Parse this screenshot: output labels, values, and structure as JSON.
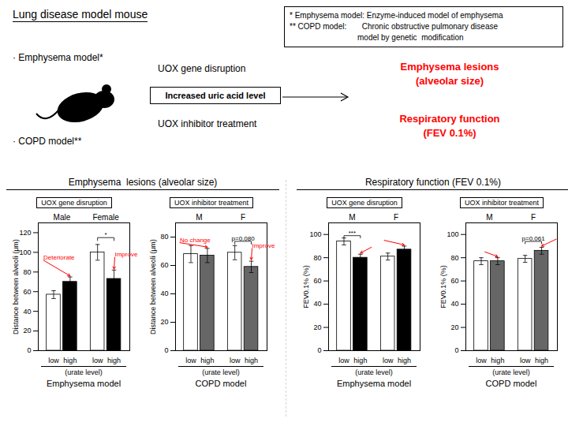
{
  "header": {
    "title": "Lung disease model mouse",
    "notes": [
      "* Emphysema model: Enzyme-induced model of emphysema",
      "** COPD model:       Chronic obstructive pulmonary disease",
      "model by genetic  modification"
    ],
    "models": [
      "· Emphysema model*",
      "· COPD model**"
    ],
    "causes": [
      "UOX gene disruption",
      "UOX inhibitor treatment"
    ],
    "effect": "Increased uric acid level",
    "outcomes": [
      "Emphysema lesions\n(alveolar size)",
      "Respiratory function\n(FEV 0.1%)"
    ],
    "outcome_color": "red"
  },
  "panel_titles": [
    "Emphysema  lesions (alveolar size)",
    "Respiratory function (FEV 0.1%)"
  ],
  "chart_data": [
    {
      "type": "bar",
      "title": "UOX gene disruption",
      "categories": [
        "low",
        "high",
        "low",
        "high"
      ],
      "groups": [
        "Male",
        "Male",
        "Female",
        "Female"
      ],
      "values": [
        57,
        70,
        100,
        73
      ],
      "errors": [
        4,
        5,
        8,
        9
      ],
      "colors": [
        "white",
        "black",
        "white",
        "black"
      ],
      "ylabel": "Distance between alveoli (μm)",
      "xlabel": "(urate level)",
      "caption": "Emphysema model",
      "ylim": [
        0,
        130
      ],
      "yticks": [
        0,
        20,
        40,
        60,
        80,
        100,
        120
      ],
      "annotations": [
        {
          "text": "Deteriorate",
          "bar": 1,
          "color": "red"
        },
        {
          "text": "Improve",
          "bar": 3,
          "color": "red"
        },
        {
          "text": "*",
          "bars": [
            2,
            3
          ]
        }
      ]
    },
    {
      "type": "bar",
      "title": "UOX inhibitor treatment",
      "categories": [
        "low",
        "high",
        "low",
        "high"
      ],
      "groups": [
        "M",
        "M",
        "F",
        "F"
      ],
      "values": [
        68,
        67,
        69,
        59
      ],
      "errors": [
        6,
        5,
        5,
        4
      ],
      "colors": [
        "white",
        "#666666",
        "white",
        "#666666"
      ],
      "ylabel": "Distance between alveoli (μm)",
      "xlabel": "(urate level)",
      "caption": "COPD model",
      "ylim": [
        0,
        90
      ],
      "yticks": [
        0,
        20,
        40,
        60,
        80
      ],
      "annotations": [
        {
          "text": "No change",
          "bar": 1,
          "color": "red"
        },
        {
          "text": "Improve",
          "bar": 3,
          "color": "red"
        },
        {
          "text": "p=0.080",
          "bars": [
            2,
            3
          ]
        }
      ]
    },
    {
      "type": "bar",
      "title": "UOX gene disruption",
      "categories": [
        "low",
        "high",
        "low",
        "high"
      ],
      "groups": [
        "M",
        "M",
        "F",
        "F"
      ],
      "values": [
        94,
        80,
        81,
        87
      ],
      "errors": [
        3,
        3,
        3,
        3
      ],
      "colors": [
        "white",
        "black",
        "white",
        "black"
      ],
      "ylabel": "FEV0.1% (%)",
      "xlabel": "(urate level)",
      "caption": "Emphysema model",
      "ylim": [
        0,
        110
      ],
      "yticks": [
        0,
        20,
        40,
        60,
        80,
        100
      ],
      "annotations": [
        {
          "text": "***",
          "bars": [
            0,
            1
          ]
        },
        {
          "bar": 1,
          "color": "red"
        },
        {
          "bar": 3,
          "color": "red"
        }
      ]
    },
    {
      "type": "bar",
      "title": "UOX inhibitor treatment",
      "categories": [
        "low",
        "high",
        "low",
        "high"
      ],
      "groups": [
        "M",
        "M",
        "F",
        "F"
      ],
      "values": [
        77,
        77,
        79,
        86
      ],
      "errors": [
        3,
        3,
        3,
        3
      ],
      "colors": [
        "white",
        "#666666",
        "white",
        "#666666"
      ],
      "ylabel": "FEV0.1% (%)",
      "xlabel": "(urate level)",
      "caption": "COPD model",
      "ylim": [
        0,
        110
      ],
      "yticks": [
        0,
        20,
        40,
        60,
        80,
        100
      ],
      "annotations": [
        {
          "bar": 1,
          "color": "red"
        },
        {
          "text": "p=0.061",
          "bars": [
            2,
            3
          ]
        },
        {
          "bar": 3,
          "color": "red"
        }
      ]
    }
  ]
}
